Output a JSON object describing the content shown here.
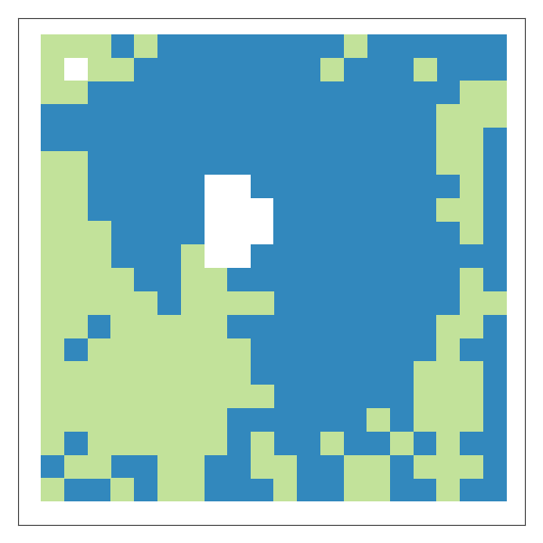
{
  "chart_data": {
    "type": "scatter",
    "marker": "square",
    "tick_labels": false,
    "colors": [
      "#3288bd",
      "#c2e29a"
    ],
    "xlim": [
      -1.5,
      20.3
    ],
    "ylim": [
      20.5,
      -1.2
    ],
    "xticks": [],
    "yticks": [],
    "cells": [
      [
        1,
        1,
        1,
        0,
        1,
        0,
        0,
        0,
        0,
        0,
        0,
        0,
        0,
        1,
        0,
        0,
        0,
        0,
        0,
        0
      ],
      [
        1,
        null,
        1,
        1,
        0,
        0,
        0,
        0,
        0,
        0,
        0,
        0,
        1,
        0,
        0,
        0,
        1,
        0,
        0,
        0
      ],
      [
        1,
        1,
        0,
        0,
        0,
        0,
        0,
        0,
        0,
        0,
        0,
        0,
        0,
        0,
        0,
        0,
        0,
        0,
        1,
        1
      ],
      [
        0,
        0,
        0,
        0,
        0,
        0,
        0,
        0,
        0,
        0,
        0,
        0,
        0,
        0,
        0,
        0,
        0,
        1,
        1,
        1
      ],
      [
        0,
        0,
        0,
        0,
        0,
        0,
        0,
        0,
        0,
        0,
        0,
        0,
        0,
        0,
        0,
        0,
        0,
        1,
        1,
        0
      ],
      [
        1,
        1,
        0,
        0,
        0,
        0,
        0,
        0,
        0,
        0,
        0,
        0,
        0,
        0,
        0,
        0,
        0,
        1,
        1,
        0
      ],
      [
        1,
        1,
        0,
        0,
        0,
        0,
        0,
        null,
        null,
        0,
        0,
        0,
        0,
        0,
        0,
        0,
        0,
        0,
        1,
        0
      ],
      [
        1,
        1,
        0,
        0,
        0,
        0,
        0,
        null,
        null,
        null,
        0,
        0,
        0,
        0,
        0,
        0,
        0,
        1,
        1,
        0
      ],
      [
        1,
        1,
        1,
        0,
        0,
        0,
        0,
        null,
        null,
        null,
        0,
        0,
        0,
        0,
        0,
        0,
        0,
        0,
        1,
        0
      ],
      [
        1,
        1,
        1,
        0,
        0,
        0,
        1,
        null,
        null,
        0,
        0,
        0,
        0,
        0,
        0,
        0,
        0,
        0,
        0,
        0
      ],
      [
        1,
        1,
        1,
        1,
        0,
        0,
        1,
        1,
        0,
        0,
        0,
        0,
        0,
        0,
        0,
        0,
        0,
        0,
        1,
        0
      ],
      [
        1,
        1,
        1,
        1,
        1,
        0,
        1,
        1,
        1,
        1,
        0,
        0,
        0,
        0,
        0,
        0,
        0,
        0,
        1,
        1
      ],
      [
        1,
        1,
        0,
        1,
        1,
        1,
        1,
        1,
        0,
        0,
        0,
        0,
        0,
        0,
        0,
        0,
        0,
        1,
        1,
        0
      ],
      [
        1,
        0,
        1,
        1,
        1,
        1,
        1,
        1,
        1,
        0,
        0,
        0,
        0,
        0,
        0,
        0,
        0,
        1,
        0,
        0
      ],
      [
        1,
        1,
        1,
        1,
        1,
        1,
        1,
        1,
        1,
        0,
        0,
        0,
        0,
        0,
        0,
        0,
        1,
        1,
        1,
        0
      ],
      [
        1,
        1,
        1,
        1,
        1,
        1,
        1,
        1,
        1,
        1,
        0,
        0,
        0,
        0,
        0,
        0,
        1,
        1,
        1,
        0
      ],
      [
        1,
        1,
        1,
        1,
        1,
        1,
        1,
        1,
        0,
        0,
        0,
        0,
        0,
        0,
        1,
        0,
        1,
        1,
        1,
        0
      ],
      [
        1,
        0,
        1,
        1,
        1,
        1,
        1,
        1,
        0,
        1,
        0,
        0,
        1,
        0,
        0,
        1,
        0,
        1,
        0,
        0
      ],
      [
        0,
        1,
        1,
        0,
        0,
        1,
        1,
        0,
        0,
        1,
        1,
        0,
        0,
        1,
        1,
        0,
        1,
        1,
        1,
        0
      ],
      [
        1,
        0,
        0,
        1,
        0,
        1,
        1,
        0,
        0,
        0,
        1,
        0,
        0,
        1,
        1,
        0,
        0,
        1,
        0,
        0
      ]
    ]
  }
}
